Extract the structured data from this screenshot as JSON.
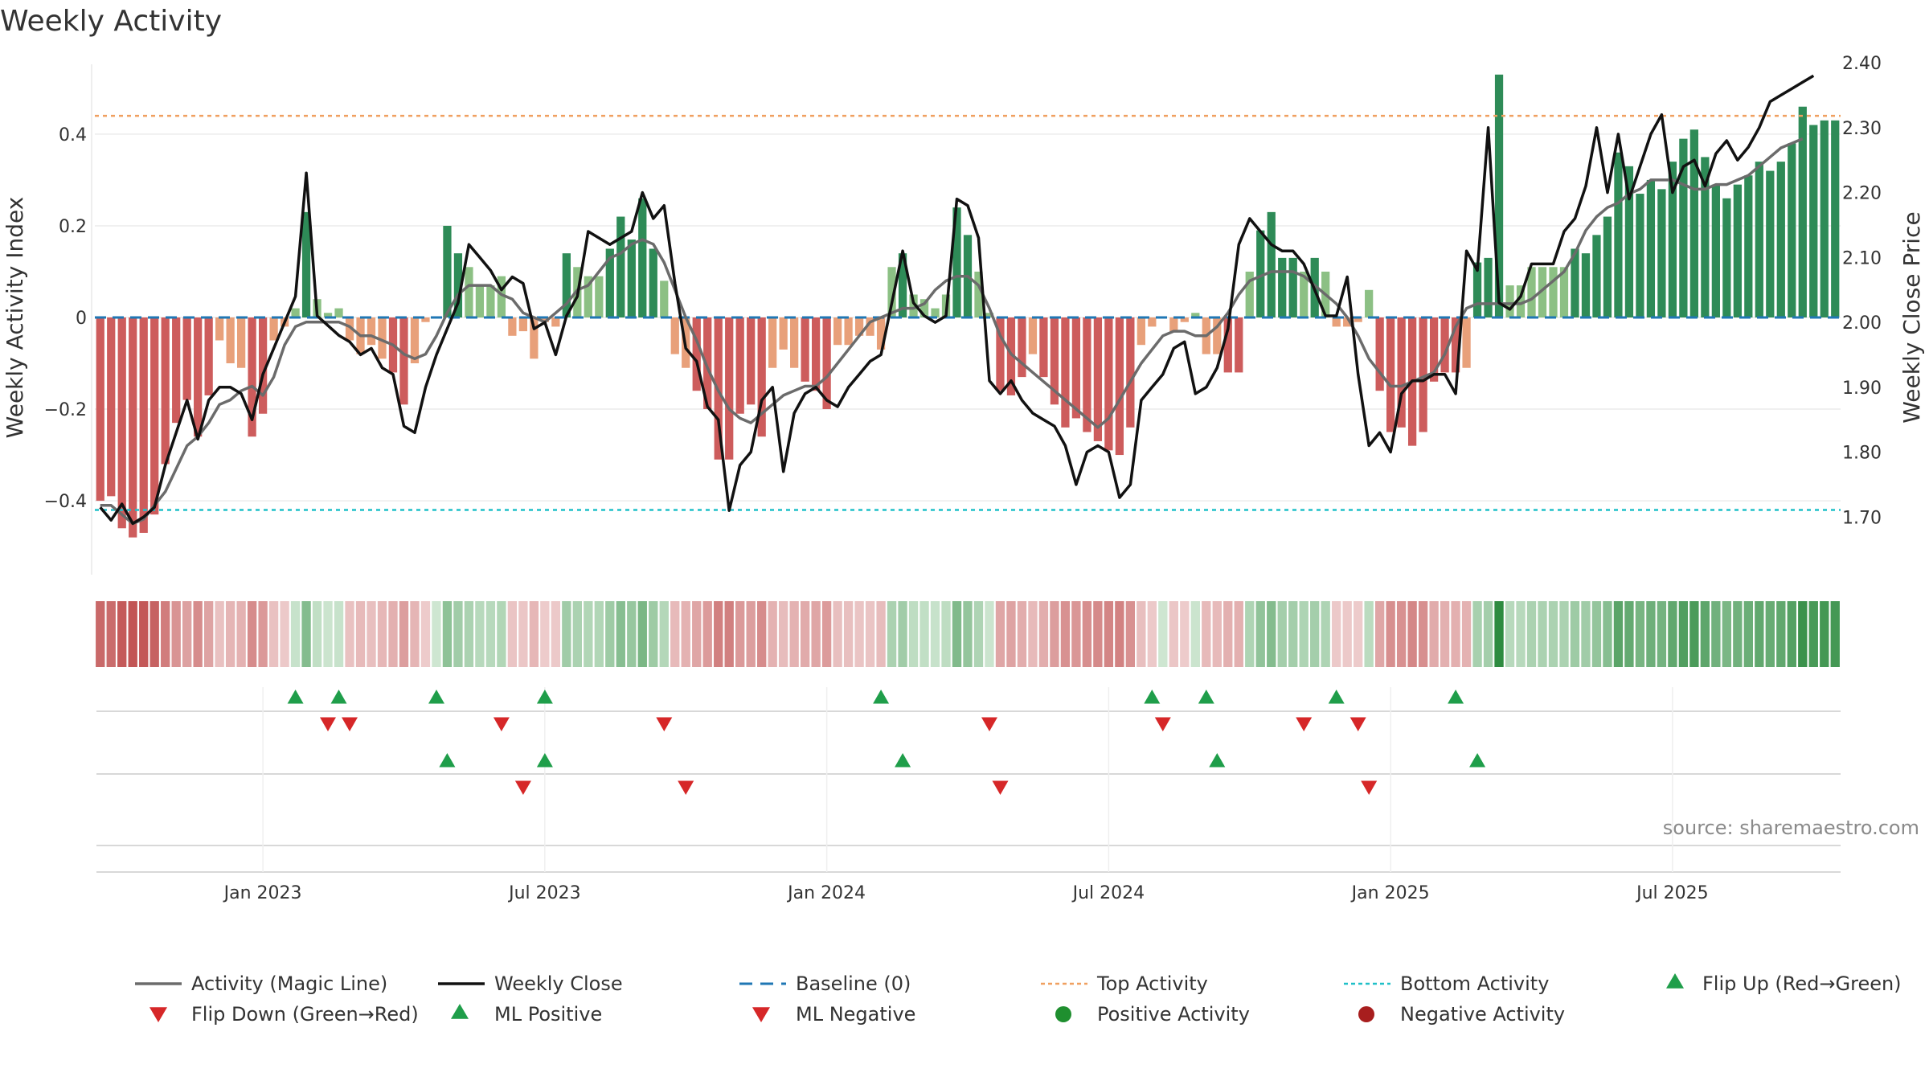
{
  "title": "Weekly Activity",
  "source": "source: sharemaestro.com",
  "colors": {
    "pos_dark": "#2e8b57",
    "pos_light": "#8cc084",
    "neg_dark": "#cd5c5c",
    "neg_light": "#e8a07a",
    "magic": "#6b6b6b",
    "close": "#111111",
    "baseline": "#1f77b4",
    "top": "#f0a060",
    "bottom": "#20c0c8",
    "up": "#1f9e4a",
    "down": "#d62728"
  },
  "chart_data": {
    "type": "bar",
    "title": "Weekly Activity",
    "ylabel": "Weekly Activity Index",
    "y2label": "Weekly Close Price",
    "ylim": [
      -0.57,
      0.57
    ],
    "y2lim": [
      1.605,
      2.41
    ],
    "yticks": [
      0.4,
      0.2,
      0,
      -0.2,
      -0.4
    ],
    "ytick_labels": [
      "0.4",
      "0.2",
      "0",
      "−0.2",
      "−0.4"
    ],
    "y2ticks": [
      2.4,
      2.3,
      2.2,
      2.1,
      2.0,
      1.9,
      1.8,
      1.7
    ],
    "y2tick_labels": [
      "2.40",
      "2.30",
      "2.20",
      "2.10",
      "2.00",
      "1.90",
      "1.80",
      "1.70"
    ],
    "top_activity": 0.44,
    "bottom_activity": -0.42,
    "x_start_week": 0,
    "xtick_labels": [
      {
        "label": "Jan 2023",
        "week": 15
      },
      {
        "label": "Jul 2023",
        "week": 41
      },
      {
        "label": "Jan 2024",
        "week": 67
      },
      {
        "label": "Jul 2024",
        "week": 93
      },
      {
        "label": "Jan 2025",
        "week": 119
      },
      {
        "label": "Jul 2025",
        "week": 145
      }
    ],
    "activity": [
      -0.4,
      -0.39,
      -0.46,
      -0.48,
      -0.47,
      -0.43,
      -0.32,
      -0.23,
      -0.18,
      -0.26,
      -0.17,
      -0.05,
      -0.1,
      -0.11,
      -0.26,
      -0.21,
      -0.05,
      -0.02,
      0.02,
      0.23,
      0.04,
      0.01,
      0.02,
      -0.05,
      -0.08,
      -0.06,
      -0.09,
      -0.12,
      -0.19,
      -0.1,
      -0.01,
      0.0,
      0.2,
      0.14,
      0.11,
      0.07,
      0.07,
      0.09,
      -0.04,
      -0.03,
      -0.09,
      -0.01,
      -0.02,
      0.14,
      0.11,
      0.09,
      0.09,
      0.15,
      0.22,
      0.17,
      0.26,
      0.15,
      0.08,
      -0.08,
      -0.11,
      -0.16,
      -0.2,
      -0.31,
      -0.31,
      -0.21,
      -0.19,
      -0.26,
      -0.11,
      -0.07,
      -0.11,
      -0.14,
      -0.16,
      -0.2,
      -0.06,
      -0.06,
      -0.04,
      -0.04,
      -0.07,
      0.11,
      0.14,
      0.05,
      0.04,
      0.02,
      0.05,
      0.24,
      0.18,
      0.1,
      0.01,
      -0.16,
      -0.17,
      -0.13,
      -0.08,
      -0.13,
      -0.19,
      -0.24,
      -0.22,
      -0.25,
      -0.27,
      -0.29,
      -0.3,
      -0.24,
      -0.06,
      -0.02,
      0.0,
      -0.03,
      -0.01,
      0.01,
      -0.08,
      -0.08,
      -0.12,
      -0.12,
      0.1,
      0.19,
      0.23,
      0.13,
      0.13,
      0.1,
      0.13,
      0.1,
      -0.02,
      -0.02,
      -0.01,
      0.06,
      -0.16,
      -0.25,
      -0.24,
      -0.28,
      -0.25,
      -0.14,
      -0.12,
      -0.12,
      -0.11,
      0.12,
      0.13,
      0.53,
      0.07,
      0.07,
      0.11,
      0.11,
      0.11,
      0.11,
      0.15,
      0.14,
      0.18,
      0.22,
      0.36,
      0.33,
      0.27,
      0.3,
      0.28,
      0.34,
      0.39,
      0.41,
      0.35,
      0.29,
      0.26,
      0.29,
      0.31,
      0.34,
      0.32,
      0.34,
      0.38,
      0.46,
      0.42,
      0.43,
      0.43
    ],
    "weekly_close": [
      1.715,
      1.695,
      1.72,
      1.69,
      1.7,
      1.715,
      1.78,
      1.83,
      1.88,
      1.82,
      1.88,
      1.9,
      1.9,
      1.89,
      1.85,
      1.92,
      1.96,
      2.0,
      2.04,
      2.23,
      2.01,
      1.995,
      1.98,
      1.97,
      1.95,
      1.96,
      1.93,
      1.92,
      1.84,
      1.83,
      1.9,
      1.95,
      1.99,
      2.03,
      2.12,
      2.1,
      2.08,
      2.05,
      2.07,
      2.06,
      1.99,
      2.0,
      1.95,
      2.01,
      2.04,
      2.14,
      2.13,
      2.12,
      2.13,
      2.14,
      2.2,
      2.16,
      2.18,
      2.06,
      1.96,
      1.94,
      1.87,
      1.85,
      1.71,
      1.78,
      1.8,
      1.88,
      1.9,
      1.77,
      1.86,
      1.89,
      1.9,
      1.88,
      1.87,
      1.9,
      1.92,
      1.94,
      1.95,
      2.03,
      2.11,
      2.03,
      2.01,
      2.0,
      2.01,
      2.19,
      2.18,
      2.13,
      1.91,
      1.89,
      1.91,
      1.88,
      1.86,
      1.85,
      1.84,
      1.81,
      1.75,
      1.8,
      1.81,
      1.8,
      1.73,
      1.75,
      1.88,
      1.9,
      1.92,
      1.96,
      1.97,
      1.89,
      1.9,
      1.93,
      1.99,
      2.12,
      2.16,
      2.14,
      2.12,
      2.11,
      2.11,
      2.09,
      2.05,
      2.01,
      2.01,
      2.07,
      1.92,
      1.81,
      1.83,
      1.8,
      1.89,
      1.91,
      1.91,
      1.92,
      1.92,
      1.89,
      2.11,
      2.08,
      2.3,
      2.03,
      2.02,
      2.04,
      2.09,
      2.09,
      2.09,
      2.14,
      2.16,
      2.21,
      2.3,
      2.2,
      2.29,
      2.19,
      2.24,
      2.29,
      2.32,
      2.2,
      2.24,
      2.25,
      2.21,
      2.26,
      2.28,
      2.25,
      2.27,
      2.3,
      2.34,
      2.35,
      2.36,
      2.37,
      2.38
    ],
    "magic_line": [
      -0.41,
      -0.41,
      -0.43,
      -0.45,
      -0.44,
      -0.41,
      -0.38,
      -0.33,
      -0.28,
      -0.26,
      -0.23,
      -0.19,
      -0.18,
      -0.16,
      -0.15,
      -0.17,
      -0.13,
      -0.06,
      -0.02,
      -0.01,
      -0.01,
      -0.01,
      -0.01,
      -0.02,
      -0.04,
      -0.04,
      -0.05,
      -0.06,
      -0.08,
      -0.09,
      -0.08,
      -0.04,
      0.01,
      0.05,
      0.07,
      0.07,
      0.07,
      0.05,
      0.04,
      0.01,
      0.0,
      -0.01,
      0.01,
      0.03,
      0.06,
      0.07,
      0.1,
      0.13,
      0.14,
      0.16,
      0.17,
      0.16,
      0.12,
      0.06,
      0.0,
      -0.05,
      -0.11,
      -0.16,
      -0.2,
      -0.22,
      -0.23,
      -0.21,
      -0.19,
      -0.17,
      -0.16,
      -0.15,
      -0.15,
      -0.13,
      -0.1,
      -0.07,
      -0.04,
      -0.01,
      0.0,
      0.01,
      0.02,
      0.02,
      0.03,
      0.06,
      0.08,
      0.09,
      0.09,
      0.07,
      0.02,
      -0.04,
      -0.08,
      -0.1,
      -0.12,
      -0.14,
      -0.16,
      -0.18,
      -0.2,
      -0.22,
      -0.24,
      -0.22,
      -0.18,
      -0.14,
      -0.1,
      -0.07,
      -0.04,
      -0.03,
      -0.03,
      -0.04,
      -0.04,
      -0.02,
      0.01,
      0.05,
      0.08,
      0.09,
      0.1,
      0.1,
      0.1,
      0.09,
      0.07,
      0.05,
      0.03,
      0.0,
      -0.04,
      -0.09,
      -0.12,
      -0.15,
      -0.15,
      -0.14,
      -0.13,
      -0.12,
      -0.08,
      -0.02,
      0.02,
      0.03,
      0.03,
      0.03,
      0.03,
      0.03,
      0.04,
      0.06,
      0.08,
      0.1,
      0.14,
      0.19,
      0.22,
      0.24,
      0.25,
      0.27,
      0.28,
      0.3,
      0.3,
      0.3,
      0.29,
      0.28,
      0.28,
      0.29,
      0.29,
      0.3,
      0.31,
      0.33,
      0.35,
      0.37,
      0.38,
      0.39
    ],
    "heat_strip": [
      -0.4,
      -0.39,
      -0.46,
      -0.48,
      -0.47,
      -0.43,
      -0.32,
      -0.23,
      -0.18,
      -0.26,
      -0.17,
      -0.05,
      -0.1,
      -0.11,
      -0.26,
      -0.21,
      -0.05,
      -0.02,
      0.02,
      0.23,
      0.04,
      0.01,
      0.02,
      -0.05,
      -0.08,
      -0.06,
      -0.09,
      -0.12,
      -0.19,
      -0.1,
      -0.01,
      0.0,
      0.2,
      0.14,
      0.11,
      0.07,
      0.07,
      0.09,
      -0.04,
      -0.03,
      -0.09,
      -0.01,
      -0.02,
      0.14,
      0.11,
      0.09,
      0.09,
      0.15,
      0.22,
      0.17,
      0.26,
      0.15,
      0.08,
      -0.08,
      -0.11,
      -0.16,
      -0.2,
      -0.31,
      -0.31,
      -0.21,
      -0.19,
      -0.26,
      -0.11,
      -0.07,
      -0.11,
      -0.14,
      -0.16,
      -0.2,
      -0.06,
      -0.06,
      -0.04,
      -0.04,
      -0.07,
      0.11,
      0.14,
      0.05,
      0.04,
      0.02,
      0.05,
      0.24,
      0.18,
      0.1,
      0.01,
      -0.16,
      -0.17,
      -0.13,
      -0.08,
      -0.13,
      -0.19,
      -0.24,
      -0.22,
      -0.25,
      -0.27,
      -0.29,
      -0.3,
      -0.24,
      -0.06,
      -0.02,
      0.0,
      -0.03,
      -0.01,
      0.01,
      -0.08,
      -0.08,
      -0.12,
      -0.12,
      0.1,
      0.19,
      0.23,
      0.13,
      0.13,
      0.1,
      0.13,
      0.1,
      -0.02,
      -0.02,
      -0.01,
      0.06,
      -0.16,
      -0.25,
      -0.24,
      -0.28,
      -0.25,
      -0.14,
      -0.12,
      -0.12,
      -0.11,
      0.12,
      0.13,
      0.53,
      0.07,
      0.07,
      0.11,
      0.11,
      0.11,
      0.11,
      0.15,
      0.14,
      0.18,
      0.22,
      0.36,
      0.33,
      0.27,
      0.3,
      0.28,
      0.34,
      0.39,
      0.41,
      0.35,
      0.29,
      0.26,
      0.29,
      0.31,
      0.34,
      0.32,
      0.34,
      0.38,
      0.46,
      0.42,
      0.43,
      0.43
    ],
    "flip_up_weeks": [
      18,
      22,
      31,
      41,
      72,
      97,
      102,
      114,
      125
    ],
    "flip_down_weeks": [
      21,
      23,
      37,
      52,
      82,
      98,
      111,
      116
    ],
    "ml_positive_weeks": [
      32,
      41,
      74,
      103,
      127
    ],
    "ml_negative_weeks": [
      39,
      54,
      83,
      117
    ],
    "positive_activity_weeks": [],
    "negative_activity_weeks": []
  },
  "legend": {
    "row1": [
      "Activity (Magic Line)",
      "Weekly Close",
      "Baseline (0)",
      "Top Activity",
      "Bottom Activity",
      "Flip Up (Red→Green)"
    ],
    "row2": [
      "Flip Down (Green→Red)",
      "ML Positive",
      "ML Negative",
      "Positive Activity",
      "Negative Activity"
    ]
  }
}
